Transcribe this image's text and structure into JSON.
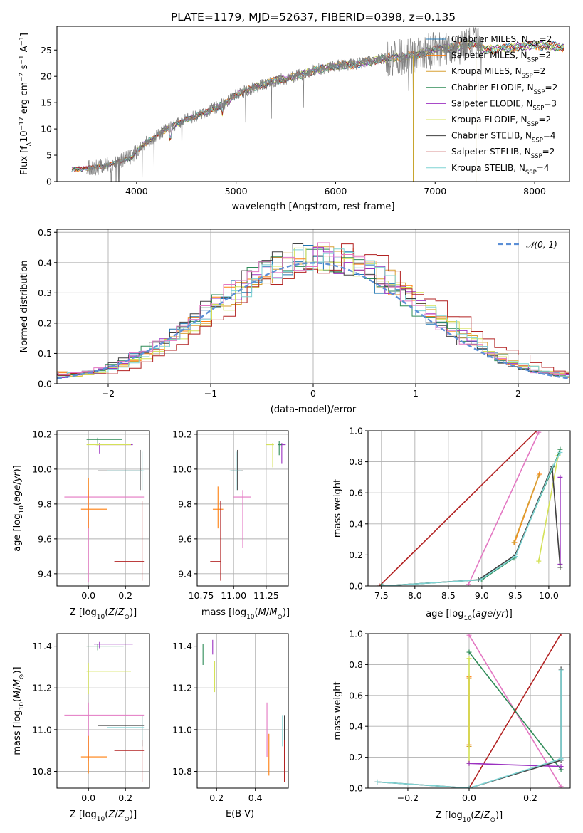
{
  "chart_data": [
    {
      "panel": "spectrum",
      "type": "line",
      "title": "PLATE=1179, MJD=52637, FIBERID=0398, z=0.135",
      "xlabel": "wavelength [Angstrom, rest frame]",
      "ylabel": "Flux [f_λ10^-17 erg cm^-2 s^-1 A^-1]",
      "xlim": [
        3200,
        8350
      ],
      "ylim": [
        0,
        29.5
      ],
      "xticks": [
        "4000",
        "5000",
        "6000",
        "7000",
        "8000"
      ],
      "xtick_values": [
        4000,
        5000,
        6000,
        7000,
        8000
      ],
      "yticks": [
        "0",
        "5",
        "10",
        "15",
        "20",
        "25"
      ],
      "ytick_values": [
        0,
        5,
        10,
        15,
        20,
        25
      ],
      "grid": false,
      "legend": "right",
      "data_color": "#808080",
      "continuum_x": [
        3350,
        3500,
        3700,
        3850,
        3950,
        4000,
        4100,
        4200,
        4300,
        4500,
        4700,
        4900,
        5000,
        5200,
        5400,
        5600,
        5800,
        6000,
        6200,
        6400,
        6600,
        6800,
        7000,
        7200,
        7400,
        7500,
        7800,
        8000,
        8300
      ],
      "continuum_y": [
        2.3,
        2.5,
        3.0,
        4.0,
        4.5,
        5.8,
        7.5,
        8.6,
        10.0,
        11.8,
        13.2,
        15.0,
        16.5,
        18.0,
        19.2,
        20.0,
        21.2,
        22.0,
        22.3,
        23.0,
        23.6,
        24.0,
        25.0,
        25.6,
        26.2,
        25.0,
        25.5,
        26.0,
        25.5
      ],
      "legend_entries": [
        {
          "label": "Chabrier MILES, N_SSP=2",
          "main": "Chabrier MILES, N",
          "sub": "SSP",
          "suffix": "=2",
          "color": "#1f77b4"
        },
        {
          "label": "Salpeter MILES, N_SSP=2",
          "main": "Salpeter MILES, N",
          "sub": "SSP",
          "suffix": "=2",
          "color": "#ff7f0e"
        },
        {
          "label": "Kroupa MILES, N_SSP=2",
          "main": "Kroupa MILES, N",
          "sub": "SSP",
          "suffix": "=2",
          "color": "#d8a034"
        },
        {
          "label": "Chabrier ELODIE, N_SSP=2",
          "main": "Chabrier ELODIE, N",
          "sub": "SSP",
          "suffix": "=2",
          "color": "#2e8b57"
        },
        {
          "label": "Salpeter ELODIE, N_SSP=3",
          "main": "Salpeter ELODIE, N",
          "sub": "SSP",
          "suffix": "=3",
          "color": "#9b30c0"
        },
        {
          "label": "Kroupa ELODIE, N_SSP=2",
          "main": "Kroupa ELODIE, N",
          "sub": "SSP",
          "suffix": "=2",
          "color": "#d4e157"
        },
        {
          "label": "Chabrier STELIB, N_SSP=4",
          "main": "Chabrier STELIB, N",
          "sub": "SSP",
          "suffix": "=4",
          "color": "#404040"
        },
        {
          "label": "Salpeter STELIB, N_SSP=2",
          "main": "Salpeter STELIB, N",
          "sub": "SSP",
          "suffix": "=2",
          "color": "#b22222"
        },
        {
          "label": "Kroupa STELIB, N_SSP=4",
          "main": "Kroupa STELIB, N",
          "sub": "SSP",
          "suffix": "=4",
          "color": "#7fd3d3"
        }
      ]
    },
    {
      "panel": "residuals",
      "type": "line",
      "xlabel": "(data-model)/error",
      "ylabel": "Normed distribution",
      "xlim": [
        -2.5,
        2.5
      ],
      "ylim": [
        0,
        0.51
      ],
      "xticks": [
        "−2",
        "−1",
        "0",
        "1",
        "2"
      ],
      "xtick_values": [
        -2,
        -1,
        0,
        1,
        2
      ],
      "yticks": [
        "0.0",
        "0.1",
        "0.2",
        "0.3",
        "0.4",
        "0.5"
      ],
      "ytick_values": [
        0,
        0.1,
        0.2,
        0.3,
        0.4,
        0.5
      ],
      "grid": true,
      "legend": "top-right",
      "normal_label": "𝒩(0, 1)",
      "normal_color": "#5b8fd6"
    },
    {
      "panel": "age_vs_Z",
      "type": "scatter",
      "xlabel": "Z [log10(Z/Z⊙)]",
      "ylabel": "age [log10(age/yr)]",
      "xlim": [
        -0.17,
        0.33
      ],
      "ylim": [
        9.33,
        10.22
      ],
      "xticks": [
        "0.0",
        "0.2"
      ],
      "xtick_values": [
        0,
        0.2
      ],
      "yticks": [
        "9.4",
        "9.6",
        "9.8",
        "10.0",
        "10.2"
      ],
      "ytick_values": [
        9.4,
        9.6,
        9.8,
        10.0,
        10.2
      ],
      "grid": true,
      "points": [
        {
          "x": 0.05,
          "y": 10.17,
          "xlo": -0.01,
          "xhi": 0.18,
          "ylo": 10.14,
          "yhi": 10.18,
          "color": "#2e8b57"
        },
        {
          "x": 0.06,
          "y": 10.14,
          "xlo": 0.04,
          "xhi": 0.24,
          "ylo": 10.09,
          "yhi": 10.15,
          "color": "#9b30c0"
        },
        {
          "x": 0.05,
          "y": 10.14,
          "xlo": -0.01,
          "xhi": 0.23,
          "ylo": 10.13,
          "yhi": 10.15,
          "color": "#d4e157"
        },
        {
          "x": 0.28,
          "y": 9.99,
          "xlo": 0.05,
          "xhi": 0.29,
          "ylo": 9.88,
          "yhi": 10.11,
          "color": "#404040"
        },
        {
          "x": 0.29,
          "y": 9.99,
          "xlo": 0.1,
          "xhi": 0.3,
          "ylo": 9.88,
          "yhi": 10.1,
          "color": "#7fd3d3"
        },
        {
          "x": 0.0,
          "y": 9.84,
          "xlo": -0.13,
          "xhi": 0.3,
          "ylo": 9.35,
          "yhi": 9.88,
          "color": "#e377c2"
        },
        {
          "x": 0.0,
          "y": 9.77,
          "xlo": -0.04,
          "xhi": 0.1,
          "ylo": 9.66,
          "yhi": 9.95,
          "color": "#ff7f0e"
        },
        {
          "x": 0.29,
          "y": 9.47,
          "xlo": 0.14,
          "xhi": 0.3,
          "ylo": 9.36,
          "yhi": 9.82,
          "color": "#b22222"
        }
      ]
    },
    {
      "panel": "age_vs_mass",
      "type": "scatter",
      "xlabel": "mass [log10(M/M⊙)]",
      "ylabel": "",
      "xlim": [
        10.72,
        11.42
      ],
      "ylim": [
        9.33,
        10.22
      ],
      "xticks": [
        "10.75",
        "11.00",
        "11.25"
      ],
      "xtick_values": [
        10.75,
        11.0,
        11.25
      ],
      "yticks": [
        "9.4",
        "9.6",
        "9.8",
        "10.0",
        "10.2"
      ],
      "ytick_values": [
        9.4,
        9.6,
        9.8,
        10.0,
        10.2
      ],
      "grid": true,
      "points": [
        {
          "x": 11.37,
          "y": 10.14,
          "xlo": 11.35,
          "xhi": 11.4,
          "ylo": 10.03,
          "yhi": 10.15,
          "color": "#9b30c0"
        },
        {
          "x": 11.3,
          "y": 10.14,
          "xlo": 11.25,
          "xhi": 11.31,
          "ylo": 10.01,
          "yhi": 10.15,
          "color": "#d4e157"
        },
        {
          "x": 11.35,
          "y": 10.14,
          "xlo": 11.34,
          "xhi": 11.37,
          "ylo": 10.08,
          "yhi": 10.16,
          "color": "#2e8b57"
        },
        {
          "x": 11.03,
          "y": 9.99,
          "xlo": 10.98,
          "xhi": 11.07,
          "ylo": 9.88,
          "yhi": 10.11,
          "color": "#404040"
        },
        {
          "x": 11.02,
          "y": 9.99,
          "xlo": 10.97,
          "xhi": 11.06,
          "ylo": 9.88,
          "yhi": 10.1,
          "color": "#7fd3d3"
        },
        {
          "x": 11.07,
          "y": 9.84,
          "xlo": 11.0,
          "xhi": 11.13,
          "ylo": 9.55,
          "yhi": 9.88,
          "color": "#e377c2"
        },
        {
          "x": 10.88,
          "y": 9.77,
          "xlo": 10.84,
          "xhi": 10.92,
          "ylo": 9.66,
          "yhi": 9.9,
          "color": "#ff7f0e"
        },
        {
          "x": 10.9,
          "y": 9.47,
          "xlo": 10.82,
          "xhi": 10.9,
          "ylo": 9.36,
          "yhi": 9.82,
          "color": "#b22222"
        }
      ]
    },
    {
      "panel": "massweight_vs_age",
      "type": "line",
      "xlabel": "age [log10(age/yr)]",
      "ylabel": "mass weight",
      "xlim": [
        7.3,
        10.32
      ],
      "ylim": [
        0,
        1.0
      ],
      "xticks": [
        "7.5",
        "8.0",
        "8.5",
        "9.0",
        "9.5",
        "10.0"
      ],
      "xtick_values": [
        7.5,
        8.0,
        8.5,
        9.0,
        9.5,
        10.0
      ],
      "yticks": [
        "0.0",
        "0.2",
        "0.4",
        "0.6",
        "0.8",
        "1.0"
      ],
      "ytick_values": [
        0,
        0.2,
        0.4,
        0.6,
        0.8,
        1.0
      ],
      "grid": true,
      "series": [
        {
          "color": "#b22222",
          "x": [
            7.47,
            9.82
          ],
          "y": [
            0.0,
            1.0
          ]
        },
        {
          "color": "#e377c2",
          "x": [
            8.8,
            9.85
          ],
          "y": [
            0.01,
            0.99
          ]
        },
        {
          "color": "#ff7f0e",
          "x": [
            9.49,
            9.86
          ],
          "y": [
            0.28,
            0.72
          ]
        },
        {
          "color": "#d8a034",
          "x": [
            9.48,
            9.85
          ],
          "y": [
            0.28,
            0.71
          ]
        },
        {
          "color": "#d4e157",
          "x": [
            9.85,
            10.14
          ],
          "y": [
            0.16,
            0.84
          ]
        },
        {
          "color": "#2e8b57",
          "x": [
            7.5,
            9.0,
            9.48,
            10.06,
            10.17
          ],
          "y": [
            0.0,
            0.04,
            0.18,
            0.76,
            0.88
          ]
        },
        {
          "color": "#9b30c0",
          "x": [
            10.17,
            10.17
          ],
          "y": [
            0.14,
            0.7
          ]
        },
        {
          "color": "#404040",
          "x": [
            7.52,
            8.95,
            9.5,
            10.05,
            10.17
          ],
          "y": [
            0.0,
            0.04,
            0.2,
            0.77,
            0.12
          ]
        },
        {
          "color": "#7fd3d3",
          "x": [
            7.52,
            8.98,
            9.5,
            10.05,
            10.17
          ],
          "y": [
            0.0,
            0.04,
            0.19,
            0.76,
            0.86
          ]
        }
      ]
    },
    {
      "panel": "mass_vs_Z",
      "type": "scatter",
      "xlabel": "Z [log10(Z/Z⊙)]",
      "ylabel": "mass [log10(M/M⊙)]",
      "xlim": [
        -0.17,
        0.33
      ],
      "ylim": [
        10.72,
        11.46
      ],
      "xticks": [
        "0.0",
        "0.2"
      ],
      "xtick_values": [
        0,
        0.2
      ],
      "yticks": [
        "10.8",
        "11.0",
        "11.2",
        "11.4"
      ],
      "ytick_values": [
        10.8,
        11.0,
        11.2,
        11.4
      ],
      "grid": true,
      "points": [
        {
          "x": 0.06,
          "y": 11.41,
          "xlo": 0.03,
          "xhi": 0.24,
          "ylo": 11.39,
          "yhi": 11.42,
          "color": "#9b30c0"
        },
        {
          "x": 0.05,
          "y": 11.4,
          "xlo": -0.01,
          "xhi": 0.19,
          "ylo": 11.38,
          "yhi": 11.41,
          "color": "#2e8b57"
        },
        {
          "x": 0.0,
          "y": 11.28,
          "xlo": -0.01,
          "xhi": 0.23,
          "ylo": 11.17,
          "yhi": 11.32,
          "color": "#d4e157"
        },
        {
          "x": 0.29,
          "y": 11.02,
          "xlo": 0.05,
          "xhi": 0.3,
          "ylo": 10.92,
          "yhi": 11.07,
          "color": "#404040"
        },
        {
          "x": 0.29,
          "y": 11.01,
          "xlo": 0.1,
          "xhi": 0.3,
          "ylo": 10.92,
          "yhi": 11.07,
          "color": "#7fd3d3"
        },
        {
          "x": 0.0,
          "y": 11.07,
          "xlo": -0.13,
          "xhi": 0.3,
          "ylo": 10.85,
          "yhi": 11.13,
          "color": "#e377c2"
        },
        {
          "x": 0.0,
          "y": 10.87,
          "xlo": -0.04,
          "xhi": 0.1,
          "ylo": 10.79,
          "yhi": 10.97,
          "color": "#ff7f0e"
        },
        {
          "x": 0.29,
          "y": 10.9,
          "xlo": 0.14,
          "xhi": 0.3,
          "ylo": 10.75,
          "yhi": 10.95,
          "color": "#b22222"
        }
      ]
    },
    {
      "panel": "mass_vs_EBV",
      "type": "scatter",
      "xlabel": "E(B-V)",
      "ylabel": "",
      "xlim": [
        0.1,
        0.57
      ],
      "ylim": [
        10.72,
        11.46
      ],
      "xticks": [
        "0.2",
        "0.4"
      ],
      "xtick_values": [
        0.2,
        0.4
      ],
      "yticks": [
        "10.8",
        "11.0",
        "11.2",
        "11.4"
      ],
      "ytick_values": [
        10.8,
        11.0,
        11.2,
        11.4
      ],
      "grid": true,
      "points": [
        {
          "x": 0.18,
          "y": 11.39,
          "xlo": 0.18,
          "xhi": 0.18,
          "ylo": 11.36,
          "yhi": 11.43,
          "color": "#9b30c0"
        },
        {
          "x": 0.13,
          "y": 11.36,
          "xlo": 0.13,
          "xhi": 0.13,
          "ylo": 11.31,
          "yhi": 11.41,
          "color": "#2e8b57"
        },
        {
          "x": 0.19,
          "y": 11.26,
          "xlo": 0.19,
          "xhi": 0.19,
          "ylo": 11.18,
          "yhi": 11.33,
          "color": "#d4e157"
        },
        {
          "x": 0.55,
          "y": 11.02,
          "xlo": 0.55,
          "xhi": 0.55,
          "ylo": 10.92,
          "yhi": 11.07,
          "color": "#404040"
        },
        {
          "x": 0.54,
          "y": 11.01,
          "xlo": 0.54,
          "xhi": 0.54,
          "ylo": 10.92,
          "yhi": 11.07,
          "color": "#7fd3d3"
        },
        {
          "x": 0.46,
          "y": 11.05,
          "xlo": 0.46,
          "xhi": 0.46,
          "ylo": 10.87,
          "yhi": 11.13,
          "color": "#e377c2"
        },
        {
          "x": 0.47,
          "y": 10.88,
          "xlo": 0.47,
          "xhi": 0.47,
          "ylo": 10.78,
          "yhi": 10.98,
          "color": "#ff7f0e"
        },
        {
          "x": 0.55,
          "y": 10.88,
          "xlo": 0.55,
          "xhi": 0.55,
          "ylo": 10.75,
          "yhi": 10.95,
          "color": "#b22222"
        }
      ]
    },
    {
      "panel": "massweight_vs_Z",
      "type": "line",
      "xlabel": "Z [log10(Z/Z⊙)]",
      "ylabel": "mass weight",
      "xlim": [
        -0.33,
        0.33
      ],
      "ylim": [
        0,
        1.0
      ],
      "xticks": [
        "−0.2",
        "0.0",
        "0.2"
      ],
      "xtick_values": [
        -0.2,
        0,
        0.2
      ],
      "yticks": [
        "0.0",
        "0.2",
        "0.4",
        "0.6",
        "0.8",
        "1.0"
      ],
      "ytick_values": [
        0,
        0.2,
        0.4,
        0.6,
        0.8,
        1.0
      ],
      "grid": true,
      "series": [
        {
          "color": "#b22222",
          "x": [
            0.0,
            0.3
          ],
          "y": [
            0.0,
            1.0
          ]
        },
        {
          "color": "#e377c2",
          "x": [
            0.0,
            0.3
          ],
          "y": [
            0.99,
            0.01
          ]
        },
        {
          "color": "#ff7f0e",
          "x": [
            0.0,
            0.0
          ],
          "y": [
            0.28,
            0.72
          ]
        },
        {
          "color": "#d8a034",
          "x": [
            0.0,
            0.0
          ],
          "y": [
            0.27,
            0.71
          ]
        },
        {
          "color": "#d4e157",
          "x": [
            0.0,
            0.0
          ],
          "y": [
            0.16,
            0.84
          ]
        },
        {
          "color": "#2e8b57",
          "x": [
            0.0,
            0.3
          ],
          "y": [
            0.88,
            0.12
          ]
        },
        {
          "color": "#9b30c0",
          "x": [
            0.0,
            0.3
          ],
          "y": [
            0.16,
            0.14
          ]
        },
        {
          "color": "#404040",
          "x": [
            -0.3,
            0.0,
            0.3,
            0.3
          ],
          "y": [
            0.04,
            0.0,
            0.18,
            0.77
          ]
        },
        {
          "color": "#7fd3d3",
          "x": [
            -0.3,
            0.0,
            0.3,
            0.3
          ],
          "y": [
            0.04,
            0.0,
            0.19,
            0.76
          ]
        }
      ]
    }
  ]
}
